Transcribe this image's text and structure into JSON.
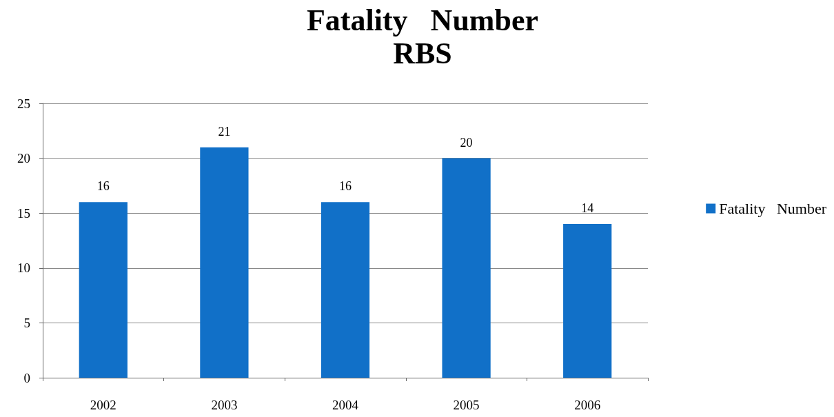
{
  "chart_data": {
    "type": "bar",
    "title": "Fatality   Number",
    "subtitle": "RBS",
    "categories": [
      "2002",
      "2003",
      "2004",
      "2005",
      "2006"
    ],
    "series": [
      {
        "name": "Fatality   Number",
        "color": "#1170c8",
        "values": [
          16,
          21,
          16,
          20,
          14
        ]
      }
    ],
    "ylim": [
      0,
      25
    ],
    "yticks": [
      0,
      5,
      10,
      15,
      20,
      25
    ],
    "grid": "y",
    "legend": "right",
    "data_labels": true
  }
}
